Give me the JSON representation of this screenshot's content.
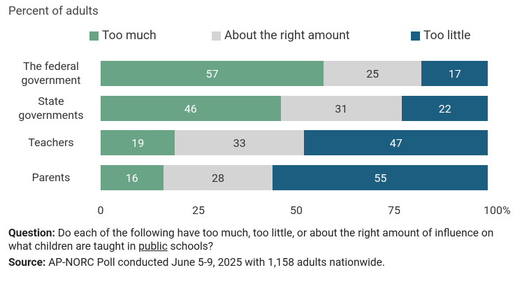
{
  "chart_data": {
    "type": "stacked_barh",
    "subtitle": "Percent of adults",
    "categories": [
      "The federal government",
      "State governments",
      "Teachers",
      "Parents"
    ],
    "series": [
      {
        "name": "Too much",
        "color": "#6aa487",
        "values": [
          57,
          46,
          19,
          16
        ]
      },
      {
        "name": "About the right amount",
        "color": "#d4d4d4",
        "values": [
          25,
          31,
          33,
          28
        ]
      },
      {
        "name": "Too little",
        "color": "#1b5e7f",
        "values": [
          17,
          22,
          47,
          55
        ]
      }
    ],
    "xlim": [
      0,
      100
    ],
    "xticks": [
      0,
      25,
      50,
      75,
      {
        "value": 100,
        "label": "100%"
      }
    ],
    "legend": "top"
  },
  "notes": {
    "question_label": "Question:",
    "question": [
      "Do each of the following have too much, too little, or about the right amount of influence on what children are taught in",
      "public",
      "schools?"
    ],
    "source_label": "Source:",
    "source": "AP-NORC Poll conducted June 5-9, 2025 with 1,158 adults nationwide."
  }
}
